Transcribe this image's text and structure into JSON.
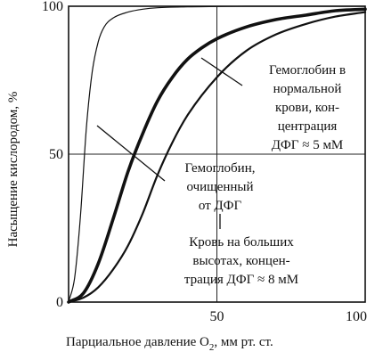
{
  "chart_data": {
    "type": "line",
    "xlabel": "Парциальное давление O",
    "xlabel_sub": "2",
    "xlabel_unit": ", мм рт. ст.",
    "ylabel": "Насыщение кислородом, %",
    "xlim": [
      0,
      100
    ],
    "ylim": [
      0,
      100
    ],
    "x_ticks": [
      "50",
      "100"
    ],
    "y_ticks": [
      "0",
      "50",
      "100"
    ],
    "grid": true,
    "series": [
      {
        "stroke": "thin",
        "x": [
          0,
          2,
          4,
          6,
          8,
          10,
          12,
          15,
          20,
          25,
          30,
          40,
          50,
          60,
          80,
          100
        ],
        "y": [
          0,
          8,
          29,
          59,
          78,
          88,
          93,
          96,
          98,
          99,
          99.5,
          99.8,
          99.9,
          100,
          100,
          100
        ]
      },
      {
        "stroke": "bold",
        "x": [
          0,
          5,
          10,
          15,
          20,
          25,
          30,
          35,
          40,
          45,
          50,
          60,
          70,
          80,
          90,
          100
        ],
        "y": [
          0,
          3,
          13,
          28,
          44,
          57,
          68,
          76,
          82,
          86,
          89,
          93,
          95.5,
          97,
          98.5,
          99
        ]
      },
      {
        "stroke": "medium",
        "x": [
          0,
          5,
          10,
          15,
          20,
          25,
          30,
          35,
          40,
          50,
          60,
          70,
          80,
          90,
          100
        ],
        "y": [
          0,
          1.5,
          5,
          11,
          19,
          30,
          43,
          54,
          63,
          76,
          85,
          90.5,
          94,
          96.5,
          98
        ]
      }
    ],
    "annotations": [
      {
        "lines": [
          "Гемоглобин в",
          "нормальной",
          "крови, кон-",
          "центрация",
          "ДФГ ≈ 5 мМ"
        ]
      },
      {
        "lines": [
          "Гемоглобин,",
          "очищенный",
          "от ДФГ"
        ]
      },
      {
        "lines": [
          "Кровь на больших",
          "высотах, концен-",
          "трация ДФГ ≈ 8 мМ"
        ]
      }
    ]
  }
}
